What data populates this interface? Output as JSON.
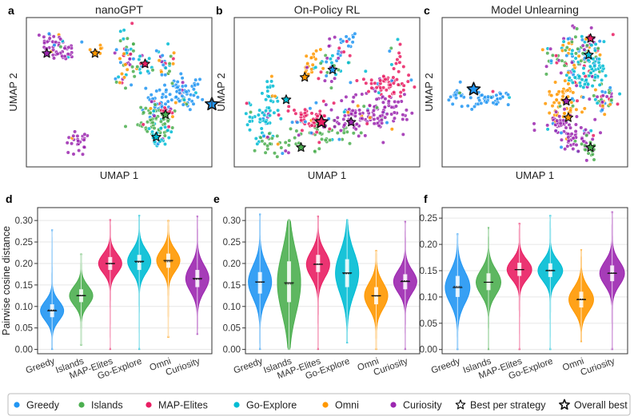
{
  "colors": {
    "Greedy": "#2196f3",
    "Islands": "#4caf50",
    "MAP-Elites": "#e91e63",
    "Go-Explore": "#00bcd4",
    "Omni": "#ff9800",
    "Curiosity": "#9c27b0"
  },
  "umap_panels": [
    {
      "letter": "a",
      "title": "nanoGPT",
      "xlabel": "UMAP 1",
      "ylabel": "UMAP 2"
    },
    {
      "letter": "b",
      "title": "On-Policy RL",
      "xlabel": "UMAP 1",
      "ylabel": "UMAP 2"
    },
    {
      "letter": "c",
      "title": "Model Unlearning",
      "xlabel": "UMAP 1",
      "ylabel": "UMAP 2"
    }
  ],
  "legend": {
    "items": [
      {
        "label": "Greedy",
        "kind": "dot"
      },
      {
        "label": "Islands",
        "kind": "dot"
      },
      {
        "label": "MAP-Elites",
        "kind": "dot"
      },
      {
        "label": "Go-Explore",
        "kind": "dot"
      },
      {
        "label": "Omni",
        "kind": "dot"
      },
      {
        "label": "Curiosity",
        "kind": "dot"
      },
      {
        "label": "Best per strategy",
        "kind": "star"
      },
      {
        "label": "Overall best",
        "kind": "bigstar"
      }
    ]
  },
  "chart_data": [
    {
      "type": "violin",
      "panel": "d",
      "ylabel": "Pairwise cosine distance",
      "ylim": [
        -0.01,
        0.33
      ],
      "yticks": [
        0.0,
        0.05,
        0.1,
        0.15,
        0.2,
        0.25,
        0.3
      ],
      "categories": [
        "Greedy",
        "Islands",
        "MAP-Elites",
        "Go-Explore",
        "Omni",
        "Curiosity"
      ],
      "stats": [
        {
          "min": 0.0,
          "q1": 0.075,
          "median": 0.09,
          "mean": 0.092,
          "q3": 0.105,
          "max": 0.278
        },
        {
          "min": 0.01,
          "q1": 0.11,
          "median": 0.125,
          "mean": 0.126,
          "q3": 0.14,
          "max": 0.222
        },
        {
          "min": 0.0,
          "q1": 0.185,
          "median": 0.2,
          "mean": 0.199,
          "q3": 0.215,
          "max": 0.302
        },
        {
          "min": 0.0,
          "q1": 0.185,
          "median": 0.205,
          "mean": 0.203,
          "q3": 0.22,
          "max": 0.312
        },
        {
          "min": 0.028,
          "q1": 0.19,
          "median": 0.207,
          "mean": 0.204,
          "q3": 0.223,
          "max": 0.3
        },
        {
          "min": 0.035,
          "q1": 0.145,
          "median": 0.165,
          "mean": 0.163,
          "q3": 0.185,
          "max": 0.31
        }
      ]
    },
    {
      "type": "violin",
      "panel": "e",
      "ylabel": "",
      "ylim": [
        -0.01,
        0.33
      ],
      "yticks": [
        0.0,
        0.05,
        0.1,
        0.15,
        0.2,
        0.25,
        0.3
      ],
      "categories": [
        "Greedy",
        "Islands",
        "MAP-Elites",
        "Go-Explore",
        "Omni",
        "Curiosity"
      ],
      "stats": [
        {
          "min": 0.0,
          "q1": 0.13,
          "median": 0.157,
          "mean": 0.156,
          "q3": 0.18,
          "max": 0.315
        },
        {
          "min": 0.0,
          "q1": 0.11,
          "median": 0.155,
          "mean": 0.152,
          "q3": 0.205,
          "max": 0.302
        },
        {
          "min": 0.0,
          "q1": 0.18,
          "median": 0.198,
          "mean": 0.199,
          "q3": 0.22,
          "max": 0.31
        },
        {
          "min": 0.015,
          "q1": 0.145,
          "median": 0.178,
          "mean": 0.176,
          "q3": 0.21,
          "max": 0.302
        },
        {
          "min": 0.0,
          "q1": 0.105,
          "median": 0.125,
          "mean": 0.124,
          "q3": 0.145,
          "max": 0.23
        },
        {
          "min": 0.0,
          "q1": 0.14,
          "median": 0.158,
          "mean": 0.16,
          "q3": 0.175,
          "max": 0.298
        }
      ]
    },
    {
      "type": "violin",
      "panel": "f",
      "ylabel": "",
      "ylim": [
        -0.008,
        0.27
      ],
      "yticks": [
        0.0,
        0.05,
        0.1,
        0.15,
        0.2,
        0.25
      ],
      "categories": [
        "Greedy",
        "Islands",
        "MAP-Elites",
        "Go-Explore",
        "Omni",
        "Curiosity"
      ],
      "stats": [
        {
          "min": 0.0,
          "q1": 0.1,
          "median": 0.118,
          "mean": 0.12,
          "q3": 0.14,
          "max": 0.22
        },
        {
          "min": 0.0,
          "q1": 0.113,
          "median": 0.128,
          "mean": 0.128,
          "q3": 0.145,
          "max": 0.232
        },
        {
          "min": 0.0,
          "q1": 0.14,
          "median": 0.152,
          "mean": 0.152,
          "q3": 0.165,
          "max": 0.24
        },
        {
          "min": 0.0,
          "q1": 0.138,
          "median": 0.15,
          "mean": 0.151,
          "q3": 0.164,
          "max": 0.255
        },
        {
          "min": 0.015,
          "q1": 0.08,
          "median": 0.095,
          "mean": 0.096,
          "q3": 0.11,
          "max": 0.19
        },
        {
          "min": 0.0,
          "q1": 0.13,
          "median": 0.145,
          "mean": 0.146,
          "q3": 0.16,
          "max": 0.262
        }
      ]
    }
  ]
}
